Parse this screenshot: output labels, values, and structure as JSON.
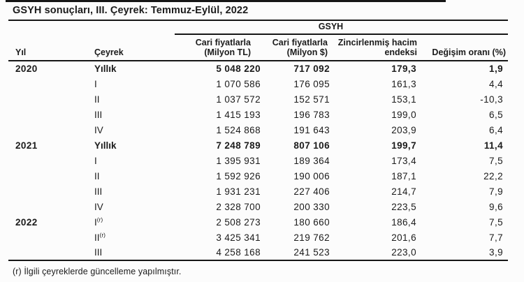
{
  "title": "GSYH sonuçları, III. Çeyrek: Temmuz-Eylül, 2022",
  "table": {
    "group_header": "GSYH",
    "columns": {
      "year": "Yıl",
      "quarter": "Çeyrek",
      "current_tl_line1": "Cari fiyatlarla",
      "current_tl_line2": "(Milyon TL)",
      "current_usd_line1": "Cari fiyatlarla",
      "current_usd_line2": "(Milyon $)",
      "volume_index_line1": "Zincirlenmiş hacim",
      "volume_index_line2": "endeksi",
      "change_rate": "Değişim oranı (%)"
    },
    "rows": [
      {
        "year": "2020",
        "quarter": "Yıllık",
        "sup": "",
        "tl": "5 048 220",
        "usd": "717 092",
        "vol": "179,3",
        "change": "1,9",
        "bold": true
      },
      {
        "year": "",
        "quarter": "I",
        "sup": "",
        "tl": "1 070 586",
        "usd": "176 095",
        "vol": "161,3",
        "change": "4,4",
        "bold": false
      },
      {
        "year": "",
        "quarter": "II",
        "sup": "",
        "tl": "1 037 572",
        "usd": "152 571",
        "vol": "153,1",
        "change": "-10,3",
        "bold": false
      },
      {
        "year": "",
        "quarter": "III",
        "sup": "",
        "tl": "1 415 193",
        "usd": "196 783",
        "vol": "199,0",
        "change": "6,5",
        "bold": false
      },
      {
        "year": "",
        "quarter": "IV",
        "sup": "",
        "tl": "1 524 868",
        "usd": "191 643",
        "vol": "203,9",
        "change": "6,4",
        "bold": false
      },
      {
        "year": "2021",
        "quarter": "Yıllık",
        "sup": "",
        "tl": "7 248 789",
        "usd": "807 106",
        "vol": "199,7",
        "change": "11,4",
        "bold": true
      },
      {
        "year": "",
        "quarter": "I",
        "sup": "",
        "tl": "1 395 931",
        "usd": "189 364",
        "vol": "173,4",
        "change": "7,5",
        "bold": false
      },
      {
        "year": "",
        "quarter": "II",
        "sup": "",
        "tl": "1 592 926",
        "usd": "190 006",
        "vol": "187,1",
        "change": "22,2",
        "bold": false
      },
      {
        "year": "",
        "quarter": "III",
        "sup": "",
        "tl": "1 931 231",
        "usd": "227 406",
        "vol": "214,7",
        "change": "7,9",
        "bold": false
      },
      {
        "year": "",
        "quarter": "IV",
        "sup": "",
        "tl": "2 328 700",
        "usd": "200 330",
        "vol": "223,5",
        "change": "9,6",
        "bold": false
      },
      {
        "year": "2022",
        "quarter": "I",
        "sup": "(r)",
        "tl": "2 508 273",
        "usd": "180 660",
        "vol": "186,4",
        "change": "7,5",
        "bold": false
      },
      {
        "year": "",
        "quarter": "II",
        "sup": "(r)",
        "tl": "3 425 341",
        "usd": "219 762",
        "vol": "201,6",
        "change": "7,7",
        "bold": false
      },
      {
        "year": "",
        "quarter": "III",
        "sup": "",
        "tl": "4 258 168",
        "usd": "241 523",
        "vol": "223,0",
        "change": "3,9",
        "bold": false
      }
    ]
  },
  "footnote": "(r) İlgili çeyreklerde güncelleme yapılmıştır."
}
